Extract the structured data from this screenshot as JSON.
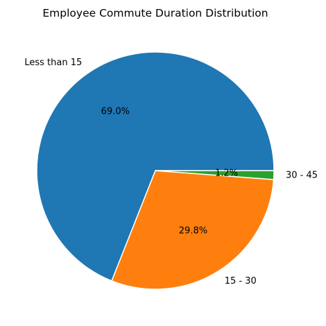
{
  "chart_data": {
    "type": "pie",
    "title": "Employee Commute Duration Distribution",
    "slices": [
      {
        "label": "Less than 15",
        "value": 69.0,
        "pct_label": "69.0%",
        "color": "#1f77b4"
      },
      {
        "label": "15 - 30",
        "value": 29.8,
        "pct_label": "29.8%",
        "color": "#ff7f0e"
      },
      {
        "label": "30 - 45",
        "value": 1.2,
        "pct_label": "1.2%",
        "color": "#2ca02c"
      }
    ],
    "start_angle": "0 degrees (3 o'clock)",
    "direction": "counterclockwise",
    "wedge_edge_color": "#ffffff",
    "legend": "none"
  }
}
